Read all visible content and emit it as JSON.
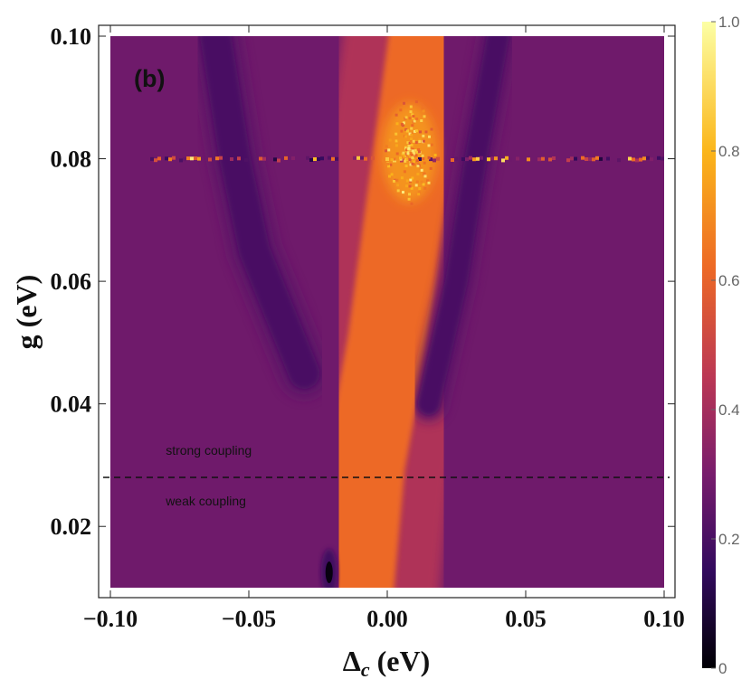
{
  "chart_data": {
    "type": "heatmap",
    "panel_label": "(b)",
    "xlabel_main": "Δ",
    "xlabel_sub": "c",
    "xlabel_unit": " (eV)",
    "ylabel": "g (eV)",
    "xlim": [
      -0.1,
      0.1
    ],
    "ylim": [
      0.01,
      0.1
    ],
    "x_ticks": [
      -0.1,
      -0.05,
      0.0,
      0.05,
      0.1
    ],
    "x_tick_labels": [
      "−0.10",
      "−0.05",
      "0.00",
      "0.05",
      "0.10"
    ],
    "y_ticks": [
      0.02,
      0.04,
      0.06,
      0.08,
      0.1
    ],
    "y_tick_labels": [
      "0.02",
      "0.04",
      "0.06",
      "0.08",
      "0.10"
    ],
    "colorbar": {
      "range": [
        0,
        1
      ],
      "ticks": [
        0,
        0.2,
        0.4,
        0.6,
        0.8,
        1.0
      ],
      "tick_labels": [
        "0",
        "0.2",
        "0.4",
        "0.6",
        "0.8",
        "1.0"
      ],
      "colormap": [
        "#000004",
        "#320a5e",
        "#781c6d",
        "#bb3754",
        "#ed6925",
        "#fbb61a",
        "#fcffa4"
      ]
    },
    "threshold_line": {
      "g": 0.028,
      "style": "dashed"
    },
    "annotations": [
      {
        "text": "strong coupling",
        "x": -0.08,
        "y": 0.0317
      },
      {
        "text": "weak coupling",
        "x": -0.08,
        "y": 0.0234
      }
    ],
    "background_value": 0.28,
    "features": [
      {
        "kind": "bright_band",
        "value": 0.62,
        "width_eV": 0.012,
        "path": [
          [
            -0.012,
            0.01
          ],
          [
            -0.008,
            0.03
          ],
          [
            0.0,
            0.05
          ],
          [
            0.006,
            0.07
          ],
          [
            0.015,
            0.1
          ]
        ]
      },
      {
        "kind": "dark_band",
        "value": 0.2,
        "width_eV": 0.007,
        "path": [
          [
            -0.03,
            0.045
          ],
          [
            -0.048,
            0.065
          ],
          [
            -0.055,
            0.08
          ],
          [
            -0.062,
            0.1
          ]
        ]
      },
      {
        "kind": "dark_band",
        "value": 0.2,
        "width_eV": 0.005,
        "path": [
          [
            0.015,
            0.04
          ],
          [
            0.025,
            0.06
          ],
          [
            0.032,
            0.08
          ],
          [
            0.04,
            0.1
          ]
        ]
      },
      {
        "kind": "dark_spot",
        "value": 0.02,
        "x": -0.021,
        "y": 0.0125
      },
      {
        "kind": "noisy_row",
        "g": 0.08,
        "value_range": [
          0.1,
          0.95
        ]
      },
      {
        "kind": "bright_spot",
        "value": 0.9,
        "x": 0.008,
        "y": 0.081
      }
    ]
  }
}
